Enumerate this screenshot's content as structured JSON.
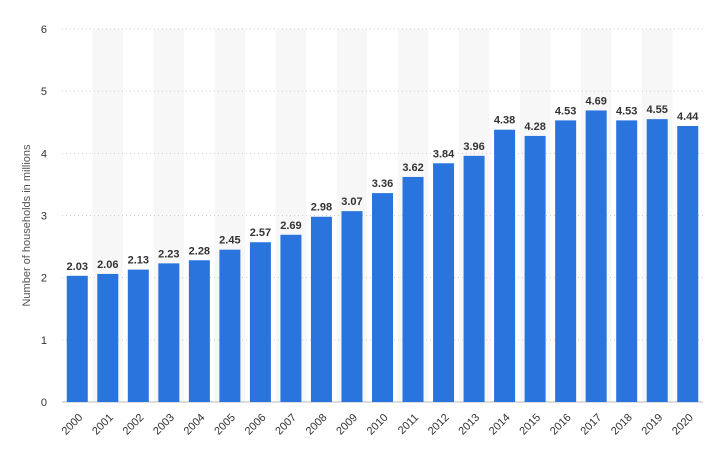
{
  "chart_data": {
    "type": "bar",
    "categories": [
      "2000",
      "2001",
      "2002",
      "2003",
      "2004",
      "2005",
      "2006",
      "2007",
      "2008",
      "2009",
      "2010",
      "2011",
      "2012",
      "2013",
      "2014",
      "2015",
      "2016",
      "2017",
      "2018",
      "2019",
      "2020"
    ],
    "values": [
      2.03,
      2.06,
      2.13,
      2.23,
      2.28,
      2.45,
      2.57,
      2.69,
      2.98,
      3.07,
      3.36,
      3.62,
      3.84,
      3.96,
      4.38,
      4.28,
      4.53,
      4.69,
      4.53,
      4.55,
      4.44
    ],
    "value_labels": [
      "2.03",
      "2.06",
      "2.13",
      "2.23",
      "2.28",
      "2.45",
      "2.57",
      "2.69",
      "2.98",
      "3.07",
      "3.36",
      "3.62",
      "3.84",
      "3.96",
      "4.38",
      "4.28",
      "4.53",
      "4.69",
      "4.53",
      "4.55",
      "4.44"
    ],
    "title": "",
    "xlabel": "",
    "ylabel": "Number of households in millions",
    "ylim": [
      0,
      6
    ],
    "yticks": [
      "0",
      "1",
      "2",
      "3",
      "4",
      "5",
      "6"
    ],
    "grid": true,
    "bar_color": "#2a74de",
    "band_color": "#f7f7f7"
  }
}
